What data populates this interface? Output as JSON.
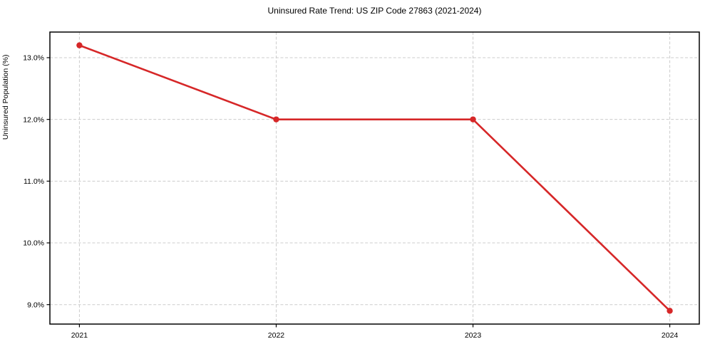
{
  "figure": {
    "title": "Uninsured Rate Trend: US ZIP Code 27863 (2021-2024)"
  },
  "chart_data": {
    "type": "line",
    "title": "Uninsured Rate Trend: US ZIP Code 27863 (2021-2024)",
    "xlabel": "",
    "ylabel": "Uninsured Population (%)",
    "x": [
      2021,
      2022,
      2023,
      2024
    ],
    "series": [
      {
        "name": "Uninsured Rate",
        "values": [
          13.2,
          12.0,
          12.0,
          8.9
        ]
      }
    ],
    "x_tick_labels": [
      "2021",
      "2022",
      "2023",
      "2024"
    ],
    "y_ticks": [
      9.0,
      10.0,
      11.0,
      12.0,
      13.0
    ],
    "y_tick_labels": [
      "9.0%",
      "10.0%",
      "11.0%",
      "12.0%",
      "13.0%"
    ],
    "xlim": [
      2020.85,
      2024.15
    ],
    "ylim": [
      8.685,
      13.415
    ],
    "grid": true,
    "grid_style": "dashed",
    "legend": "none",
    "marker": "circle",
    "colors": {
      "line": "#d62728",
      "grid": "#cccccc",
      "spine": "#000000",
      "background": "#ffffff"
    }
  }
}
